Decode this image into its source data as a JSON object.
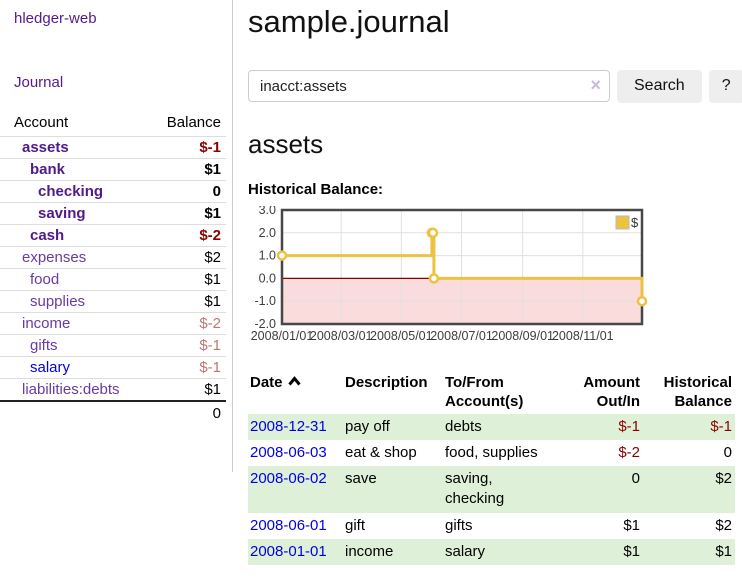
{
  "app": {
    "brand": "hledger-web"
  },
  "sidebar": {
    "journal_link": "Journal",
    "accounts": {
      "account_header": "Account",
      "balance_header": "Balance",
      "rows": [
        {
          "account": "assets",
          "balance": "$-1",
          "depth": 1,
          "selected": true
        },
        {
          "account": "bank",
          "balance": "$1",
          "depth": 2,
          "selected": true
        },
        {
          "account": "checking",
          "balance": "0",
          "depth": 3,
          "selected": true
        },
        {
          "account": "saving",
          "balance": "$1",
          "depth": 3,
          "selected": true
        },
        {
          "account": "cash",
          "balance": "$-2",
          "depth": 2,
          "selected": true
        },
        {
          "account": "expenses",
          "balance": "$2",
          "depth": 1
        },
        {
          "account": "food",
          "balance": "$1",
          "depth": 2
        },
        {
          "account": "supplies",
          "balance": "$1",
          "depth": 2
        },
        {
          "account": "income",
          "balance": "$-2",
          "depth": 1,
          "faded_negative": true
        },
        {
          "account": "gifts",
          "balance": "$-1",
          "depth": 2,
          "faded_negative": true
        },
        {
          "account": "salary",
          "balance": "$-1",
          "depth": 2,
          "faded_negative": true,
          "unvisited": true
        },
        {
          "account": "liabilities:debts",
          "balance": "$1",
          "depth": 1
        }
      ],
      "total": "0"
    }
  },
  "header": {
    "title": "sample.journal"
  },
  "search": {
    "value": "inacct:assets",
    "clear_icon": "×",
    "button_label": "Search",
    "help_label": "?"
  },
  "main": {
    "account_heading": "assets",
    "chart_label": "Historical Balance:"
  },
  "chart_data": {
    "type": "line",
    "step": true,
    "title": "Historical Balance",
    "x_range": [
      "2008-01-01",
      "2008-12-31"
    ],
    "ylim": [
      -2.0,
      3.0
    ],
    "yticks": [
      3.0,
      2.0,
      1.0,
      0.0,
      -1.0,
      -2.0
    ],
    "xticks": [
      {
        "t": "2008-01-01",
        "label": "2008/01/01"
      },
      {
        "t": "2008-03-01",
        "label": "2008/03/01"
      },
      {
        "t": "2008-05-01",
        "label": "2008/05/01"
      },
      {
        "t": "2008-07-01",
        "label": "2008/07/01"
      },
      {
        "t": "2008-09-01",
        "label": "2008/09/01"
      },
      {
        "t": "2008-11-01",
        "label": "2008/11/01"
      }
    ],
    "series": [
      {
        "name": "$",
        "color": "#edc240",
        "points": [
          [
            "2008-01-01",
            1
          ],
          [
            "2008-06-01",
            2
          ],
          [
            "2008-06-02",
            2
          ],
          [
            "2008-06-03",
            0
          ],
          [
            "2008-12-31",
            -1
          ]
        ]
      }
    ],
    "legend": {
      "label": "$",
      "position": "top-right"
    },
    "grid": true,
    "grid_color": "#e0e0e0",
    "border_color": "#474747",
    "negative_region_color": "#fbdcdc",
    "zero_line_color": "#8b0000",
    "tick_label_color": "#3d3d3d"
  },
  "register": {
    "headers": [
      {
        "label": "Date",
        "sortable": true,
        "sort": "asc"
      },
      {
        "label": "Description"
      },
      {
        "label": "To/From Account(s)"
      },
      {
        "label": "Amount Out/In",
        "align": "right"
      },
      {
        "label": "Historical Balance",
        "align": "right"
      }
    ],
    "rows": [
      {
        "date": "2008-12-31",
        "description": "pay off",
        "accounts": "debts",
        "amount": "$-1",
        "balance": "$-1"
      },
      {
        "date": "2008-06-03",
        "description": "eat & shop",
        "accounts": "food, supplies",
        "amount": "$-2",
        "balance": "0"
      },
      {
        "date": "2008-06-02",
        "description": "save",
        "accounts": "saving, checking",
        "amount": "0",
        "balance": "$2"
      },
      {
        "date": "2008-06-01",
        "description": "gift",
        "accounts": "gifts",
        "amount": "$1",
        "balance": "$2"
      },
      {
        "date": "2008-01-01",
        "description": "income",
        "accounts": "salary",
        "amount": "$1",
        "balance": "$1"
      }
    ]
  },
  "colors": {
    "link_purple": "#551a8b",
    "link_blue": "#0000ee",
    "negative_red": "#8b0000",
    "faded_negative_red": "#c07575",
    "row_green": "#dff0d8",
    "chart_gold": "#edc240",
    "chart_negative_fill": "#fbdcdc",
    "zero_line_red": "#8b0000",
    "button_gray": "#eeeeee"
  }
}
